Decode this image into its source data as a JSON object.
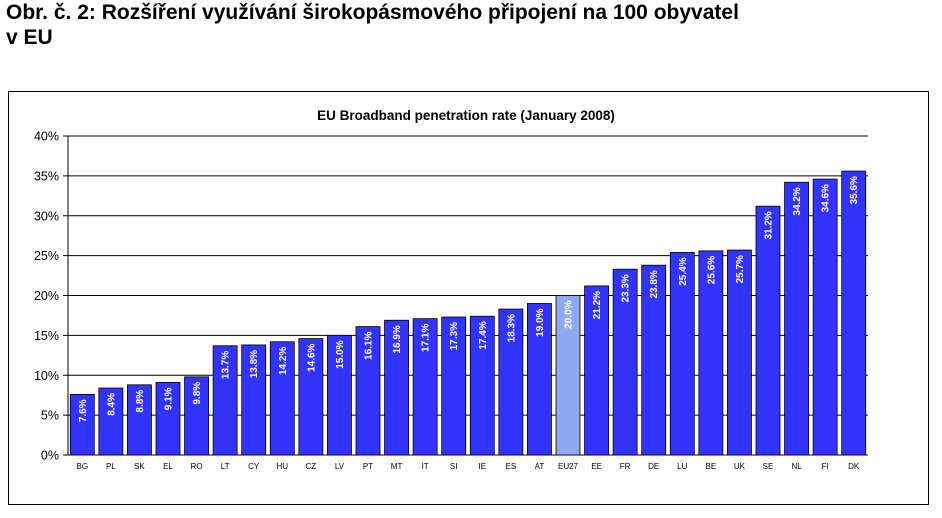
{
  "heading": {
    "line1": "Obr. č. 2: Rozšíření využívání širokopásmového připojení na 100 obyvatel",
    "line2": "v EU"
  },
  "chart_data": {
    "type": "bar",
    "title": "EU Broadband penetration rate (January 2008)",
    "categories": [
      "BG",
      "PL",
      "SK",
      "EL",
      "RO",
      "LT",
      "CY",
      "HU",
      "CZ",
      "LV",
      "PT",
      "MT",
      "IT",
      "SI",
      "IE",
      "ES",
      "AT",
      "EU27",
      "EE",
      "FR",
      "DE",
      "LU",
      "BE",
      "UK",
      "SE",
      "NL",
      "FI",
      "DK"
    ],
    "values": [
      7.6,
      8.4,
      8.8,
      9.1,
      9.8,
      13.7,
      13.8,
      14.2,
      14.6,
      15.0,
      16.1,
      16.9,
      17.1,
      17.3,
      17.4,
      18.3,
      19.0,
      20.0,
      21.2,
      23.3,
      23.8,
      25.4,
      25.6,
      25.7,
      31.2,
      34.2,
      34.6,
      35.6
    ],
    "value_labels": [
      "7.6%",
      "8.4%",
      "8.8%",
      "9.1%",
      "9.8%",
      "13.7%",
      "13.8%",
      "14.2%",
      "14.6%",
      "15.0%",
      "16.1%",
      "16.9%",
      "17.1%",
      "17.3%",
      "17.4%",
      "18.3%",
      "19.0%",
      "20.0%",
      "21.2%",
      "23.3%",
      "23.8%",
      "25.4%",
      "25.6%",
      "25.7%",
      "31.2%",
      "34.2%",
      "34.6%",
      "35.6%"
    ],
    "highlight_category": "EU27",
    "ylim": [
      0,
      40
    ],
    "yticks": [
      "0%",
      "5%",
      "10%",
      "15%",
      "20%",
      "25%",
      "30%",
      "35%",
      "40%"
    ],
    "xlabel": "",
    "ylabel": "",
    "grid": true,
    "legend": "none",
    "colors": {
      "bar": "#3333ff",
      "bar_highlight": "#8fa8f0",
      "grid": "#000000",
      "value_label": "#ffffff"
    }
  }
}
